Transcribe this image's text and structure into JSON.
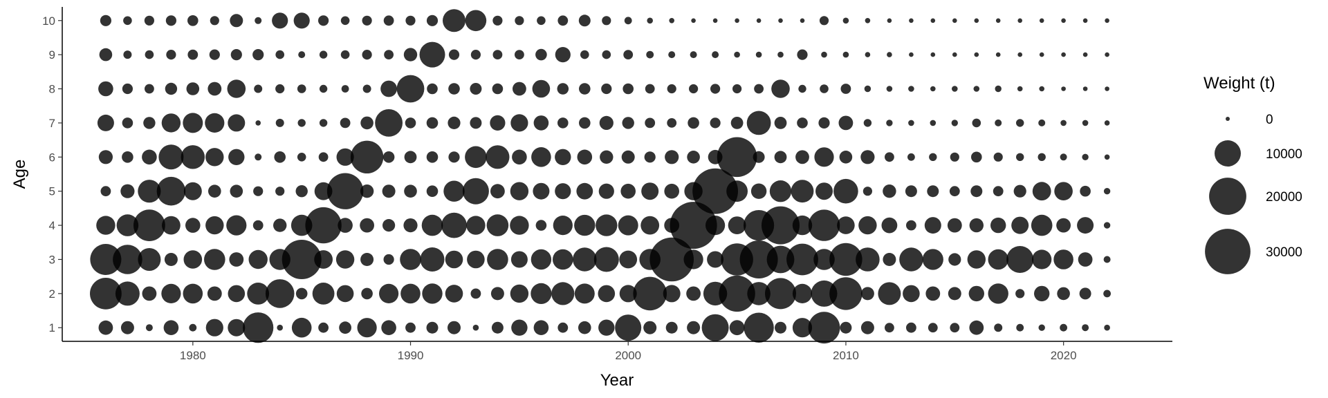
{
  "chart_data": {
    "type": "scatter",
    "subtype": "bubble",
    "xlabel": "Year",
    "ylabel": "Age",
    "xlim": [
      1974,
      2025
    ],
    "ylim": [
      0.6,
      10.4
    ],
    "x_ticks": [
      1980,
      1990,
      2000,
      2010,
      2020
    ],
    "x_tick_labels": [
      "1980",
      "1990",
      "2000",
      "2010",
      "2020"
    ],
    "y_ticks": [
      1,
      2,
      3,
      4,
      5,
      6,
      7,
      8,
      9,
      10
    ],
    "y_tick_labels": [
      "1",
      "2",
      "3",
      "4",
      "5",
      "6",
      "7",
      "8",
      "9",
      "10"
    ],
    "grid": false,
    "point_color": "#000000",
    "point_opacity": 0.8,
    "legend": {
      "title": "Weight (t)",
      "placement": "right",
      "entries": [
        {
          "label": "0",
          "value": 0
        },
        {
          "label": "10000",
          "value": 10000
        },
        {
          "label": "20000",
          "value": 20000
        },
        {
          "label": "30000",
          "value": 30000
        }
      ]
    },
    "years": [
      1976,
      1977,
      1978,
      1979,
      1980,
      1981,
      1982,
      1983,
      1984,
      1985,
      1986,
      1987,
      1988,
      1989,
      1990,
      1991,
      1992,
      1993,
      1994,
      1995,
      1996,
      1997,
      1998,
      1999,
      2000,
      2001,
      2002,
      2003,
      2004,
      2005,
      2006,
      2007,
      2008,
      2009,
      2010,
      2011,
      2012,
      2013,
      2014,
      2015,
      2016,
      2017,
      2018,
      2019,
      2020,
      2021,
      2022
    ],
    "ages": [
      1,
      2,
      3,
      4,
      5,
      6,
      7,
      8,
      9,
      10
    ],
    "weights_by_age": {
      "1": [
        3000,
        2500,
        700,
        3200,
        800,
        4400,
        4300,
        13500,
        500,
        5700,
        1500,
        2200,
        5500,
        3200,
        1500,
        2000,
        2500,
        500,
        2000,
        3800,
        3200,
        1500,
        2400,
        3800,
        10000,
        2500,
        2000,
        2500,
        10500,
        3300,
        13000,
        2000,
        5500,
        14500,
        2000,
        2500,
        1300,
        1500,
        1300,
        1300,
        3000,
        1000,
        800,
        600,
        800,
        700,
        500
      ],
      "2": [
        14500,
        8500,
        3000,
        5500,
        5700,
        3000,
        4200,
        7000,
        12000,
        1900,
        7000,
        4200,
        1900,
        5500,
        5700,
        6000,
        4500,
        1500,
        2500,
        4800,
        6300,
        7600,
        5800,
        4200,
        4300,
        16300,
        4300,
        3000,
        8200,
        19000,
        7800,
        14000,
        5500,
        10000,
        15500,
        2500,
        7500,
        4200,
        3000,
        2500,
        3500,
        6000,
        1200,
        3500,
        2400,
        2000,
        800
      ],
      "3": [
        14000,
        12500,
        7500,
        2500,
        4900,
        6500,
        3000,
        5200,
        6400,
        22500,
        5000,
        4800,
        2500,
        1600,
        6500,
        8500,
        4500,
        4500,
        6500,
        4000,
        6000,
        6100,
        8200,
        9000,
        4600,
        6500,
        28000,
        5500,
        4000,
        15000,
        21000,
        11000,
        14500,
        6500,
        15500,
        8300,
        2500,
        8200,
        6300,
        2300,
        4800,
        6000,
        10500,
        5500,
        5700,
        3000,
        700
      ],
      "4": [
        5200,
        6900,
        14500,
        5000,
        3200,
        4800,
        5900,
        1500,
        2600,
        6500,
        19000,
        3200,
        3000,
        2300,
        2800,
        6500,
        9400,
        5200,
        6900,
        5200,
        1700,
        5500,
        6400,
        6800,
        5800,
        5000,
        3300,
        32000,
        5500,
        4600,
        13500,
        21000,
        5600,
        14300,
        4500,
        4800,
        3600,
        1500,
        4000,
        3000,
        2900,
        3500,
        4300,
        6500,
        3000,
        4000,
        600
      ],
      "5": [
        1500,
        2800,
        7600,
        12000,
        4700,
        2400,
        2400,
        1400,
        1200,
        2100,
        4600,
        19000,
        2600,
        2500,
        2400,
        1900,
        6400,
        10000,
        3000,
        4800,
        4000,
        3700,
        3900,
        3400,
        3200,
        4300,
        3200,
        4800,
        30000,
        6600,
        3500,
        6800,
        7400,
        4300,
        8800,
        1200,
        2600,
        2000,
        2000,
        1500,
        2000,
        1500,
        2300,
        5000,
        4900,
        1700,
        600
      ],
      "6": [
        2800,
        1900,
        3200,
        9000,
        8200,
        4800,
        3800,
        700,
        1900,
        1100,
        1300,
        4400,
        15500,
        1900,
        2200,
        1900,
        1800,
        6900,
        8100,
        3200,
        5700,
        3800,
        3200,
        2600,
        2500,
        1800,
        2800,
        2400,
        3000,
        23000,
        2000,
        2200,
        2700,
        5500,
        2400,
        2800,
        1300,
        800,
        900,
        1200,
        1700,
        1200,
        900,
        900,
        700,
        600,
        400
      ],
      "7": [
        4000,
        1700,
        2100,
        5200,
        5800,
        5500,
        4300,
        400,
        1000,
        900,
        900,
        1500,
        2400,
        11000,
        1700,
        1900,
        2300,
        2000,
        3400,
        4400,
        3200,
        1700,
        1900,
        2800,
        2100,
        1500,
        1300,
        1900,
        1600,
        2200,
        8400,
        2200,
        1700,
        1800,
        3000,
        900,
        600,
        500,
        500,
        600,
        1100,
        700,
        900,
        700,
        500,
        500,
        400
      ],
      "8": [
        3200,
        1600,
        1300,
        2100,
        2400,
        2700,
        4900,
        1000,
        1200,
        1100,
        900,
        800,
        1000,
        3900,
        11000,
        1700,
        1900,
        2000,
        1700,
        2700,
        4500,
        1900,
        1900,
        1600,
        1700,
        1300,
        1200,
        1200,
        1400,
        1200,
        1300,
        4900,
        900,
        1100,
        1500,
        600,
        500,
        500,
        400,
        500,
        500,
        600,
        400,
        400,
        300,
        300,
        300
      ],
      "9": [
        2400,
        1000,
        1100,
        1400,
        1500,
        1600,
        1800,
        1800,
        1100,
        700,
        900,
        1100,
        1400,
        1300,
        2600,
        9500,
        1600,
        1400,
        1300,
        1300,
        1900,
        3400,
        1100,
        1100,
        1300,
        800,
        700,
        700,
        700,
        500,
        500,
        500,
        1600,
        500,
        500,
        400,
        400,
        300,
        300,
        300,
        300,
        300,
        300,
        300,
        300,
        300,
        300
      ],
      "10": [
        1800,
        1100,
        1400,
        1600,
        1700,
        1200,
        2500,
        700,
        3700,
        3700,
        1600,
        1100,
        1400,
        1500,
        1400,
        1800,
        7500,
        6500,
        1400,
        1200,
        1100,
        1500,
        2000,
        1200,
        800,
        500,
        400,
        300,
        300,
        300,
        300,
        300,
        300,
        1200,
        500,
        400,
        300,
        300,
        300,
        300,
        300,
        300,
        300,
        300,
        300,
        300,
        300
      ]
    }
  }
}
